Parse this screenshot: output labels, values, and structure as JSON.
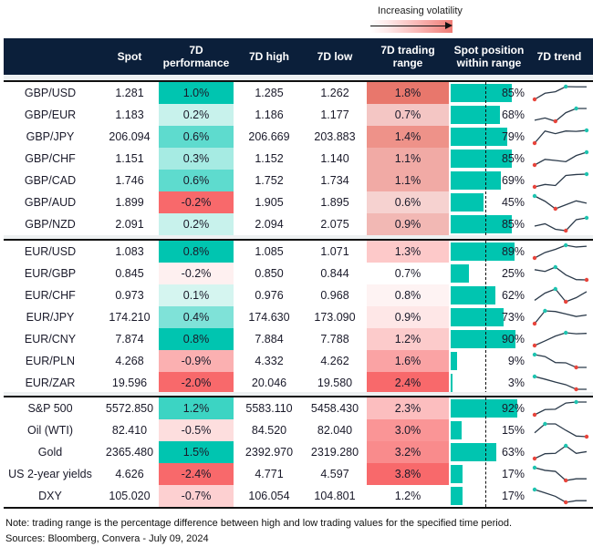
{
  "legend": {
    "title": "Increasing volatility",
    "gradient_colors": [
      "#ffffff",
      "#ef7b74"
    ]
  },
  "headers": {
    "spot": "Spot",
    "perf_1": "7D",
    "perf_2": "performance",
    "high": "7D high",
    "low": "7D low",
    "range_1": "7D trading",
    "range_2": "range",
    "pos_1": "Spot position",
    "pos_2": "within range",
    "trend": "7D trend"
  },
  "colors": {
    "header_bg": "#0b1f3a",
    "bar": "#00c5b0",
    "trend_line": "#2b3a4a",
    "trend_max": "#1fc4b0",
    "trend_min": "#e8453c"
  },
  "groups": [
    {
      "rows": [
        {
          "name": "GBP/USD",
          "spot": "1.281",
          "perf": "1.0%",
          "perf_color": "#00c5b0",
          "high": "1.285",
          "low": "1.262",
          "range": "1.8%",
          "range_color": "#e8776c",
          "position": 85,
          "position_label": "85%",
          "trend": [
            0,
            0.48,
            0.6,
            1,
            0.98,
            0.98
          ]
        },
        {
          "name": "GBP/EUR",
          "spot": "1.183",
          "perf": "0.2%",
          "perf_color": "#c8f2ec",
          "high": "1.186",
          "low": "1.177",
          "range": "0.7%",
          "range_color": "#f4c6c4",
          "position": 68,
          "position_label": "68%",
          "trend": [
            0.08,
            0.26,
            0,
            0.67,
            1,
            1
          ]
        },
        {
          "name": "GBP/JPY",
          "spot": "206.094",
          "perf": "0.6%",
          "perf_color": "#5edbce",
          "high": "206.669",
          "low": "203.883",
          "range": "1.4%",
          "range_color": "#ee9289",
          "position": 79,
          "position_label": "79%",
          "trend": [
            0,
            0.95,
            0.74,
            0.95,
            0.92,
            1
          ]
        },
        {
          "name": "GBP/CHF",
          "spot": "1.151",
          "perf": "0.3%",
          "perf_color": "#a6ebe3",
          "high": "1.152",
          "low": "1.140",
          "range": "1.1%",
          "range_color": "#f1aaa5",
          "position": 85,
          "position_label": "85%",
          "trend": [
            0,
            0.44,
            0.36,
            0.26,
            0.74,
            1
          ]
        },
        {
          "name": "GBP/CAD",
          "spot": "1.746",
          "perf": "0.6%",
          "perf_color": "#5edbce",
          "high": "1.752",
          "low": "1.734",
          "range": "1.1%",
          "range_color": "#f1aaa5",
          "position": 69,
          "position_label": "69%",
          "trend": [
            0,
            0.19,
            0.11,
            0.89,
            0.97,
            1
          ]
        },
        {
          "name": "GBP/AUD",
          "spot": "1.899",
          "perf": "-0.2%",
          "perf_color": "#f8696b",
          "high": "1.905",
          "low": "1.895",
          "range": "0.6%",
          "range_color": "#f6d2d0",
          "position": 45,
          "position_label": "45%",
          "trend": [
            1,
            0.59,
            0,
            0.31,
            0.62,
            0.44
          ]
        },
        {
          "name": "GBP/NZD",
          "spot": "2.091",
          "perf": "0.2%",
          "perf_color": "#c8f2ec",
          "high": "2.094",
          "low": "2.075",
          "range": "0.9%",
          "range_color": "#f2b8b4",
          "position": 85,
          "position_label": "85%",
          "trend": [
            0.36,
            0.54,
            0.11,
            0,
            0.86,
            1
          ]
        }
      ]
    },
    {
      "rows": [
        {
          "name": "EUR/USD",
          "spot": "1.083",
          "perf": "0.8%",
          "perf_color": "#00c5b0",
          "high": "1.085",
          "low": "1.071",
          "range": "1.3%",
          "range_color": "#fdc9c9",
          "position": 89,
          "position_label": "89%",
          "trend": [
            0,
            0.43,
            0.68,
            1,
            0.86,
            0.92
          ]
        },
        {
          "name": "EUR/GBP",
          "spot": "0.845",
          "perf": "-0.2%",
          "perf_color": "#fef0f0",
          "high": "0.850",
          "low": "0.844",
          "range": "0.7%",
          "range_color": "#ffffff",
          "position": 25,
          "position_label": "25%",
          "trend": [
            0.8,
            0.66,
            1,
            0.39,
            0.02,
            0
          ]
        },
        {
          "name": "EUR/CHF",
          "spot": "0.973",
          "perf": "0.1%",
          "perf_color": "#d5f5f0",
          "high": "0.976",
          "low": "0.968",
          "range": "0.8%",
          "range_color": "#fef3f3",
          "position": 62,
          "position_label": "62%",
          "trend": [
            0.11,
            0.68,
            1,
            0,
            0.32,
            0.79
          ]
        },
        {
          "name": "EUR/JPY",
          "spot": "174.210",
          "perf": "0.4%",
          "perf_color": "#7fe2d8",
          "high": "174.630",
          "low": "173.090",
          "range": "0.9%",
          "range_color": "#fee7e7",
          "position": 73,
          "position_label": "73%",
          "trend": [
            0,
            1,
            0.95,
            0.76,
            0.56,
            0.68
          ]
        },
        {
          "name": "EUR/CNY",
          "spot": "7.874",
          "perf": "0.8%",
          "perf_color": "#00c5b0",
          "high": "7.884",
          "low": "7.788",
          "range": "1.2%",
          "range_color": "#fccbcb",
          "position": 90,
          "position_label": "90%",
          "trend": [
            0,
            0.36,
            0.74,
            1,
            0.92,
            0.95
          ]
        },
        {
          "name": "EUR/PLN",
          "spot": "4.268",
          "perf": "-0.9%",
          "perf_color": "#fbb0b1",
          "high": "4.332",
          "low": "4.262",
          "range": "1.6%",
          "range_color": "#faa3a4",
          "position": 9,
          "position_label": "9%",
          "trend": [
            1,
            0.85,
            0.38,
            0.36,
            0,
            0
          ]
        },
        {
          "name": "EUR/ZAR",
          "spot": "19.596",
          "perf": "-2.0%",
          "perf_color": "#f8696b",
          "high": "20.046",
          "low": "19.580",
          "range": "2.4%",
          "range_color": "#f8696b",
          "position": 3,
          "position_label": "3%",
          "trend": [
            1,
            0.79,
            0.56,
            0.36,
            0,
            0
          ]
        }
      ]
    },
    {
      "rows": [
        {
          "name": "S&P 500",
          "spot": "5572.850",
          "perf": "1.2%",
          "perf_color": "#3cd4c3",
          "high": "5583.110",
          "low": "5458.430",
          "range": "2.3%",
          "range_color": "#fcbebf",
          "position": 92,
          "position_label": "92%",
          "trend": [
            0,
            0.41,
            0.44,
            0.92,
            1,
            1
          ]
        },
        {
          "name": "Oil (WTI)",
          "spot": "82.410",
          "perf": "-0.5%",
          "perf_color": "#fddede",
          "high": "84.520",
          "low": "82.040",
          "range": "3.0%",
          "range_color": "#fa9596",
          "position": 15,
          "position_label": "15%",
          "trend": [
            0.3,
            1,
            1,
            0.5,
            0.05,
            0
          ]
        },
        {
          "name": "Gold",
          "spot": "2365.480",
          "perf": "1.5%",
          "perf_color": "#00c5b0",
          "high": "2392.970",
          "low": "2319.280",
          "range": "3.2%",
          "range_color": "#f98b8c",
          "position": 63,
          "position_label": "63%",
          "trend": [
            0,
            0.38,
            0.41,
            1,
            0.41,
            0.54
          ]
        },
        {
          "name": "US 2-year yields",
          "spot": "4.626",
          "perf": "-2.4%",
          "perf_color": "#f8696b",
          "high": "4.771",
          "low": "4.597",
          "range": "3.8%",
          "range_color": "#f8696b",
          "position": 17,
          "position_label": "17%",
          "trend": [
            1,
            0.79,
            0.71,
            0,
            0.13,
            0.13
          ]
        },
        {
          "name": "DXY",
          "spot": "105.020",
          "perf": "-0.7%",
          "perf_color": "#fdd0d1",
          "high": "106.054",
          "low": "104.801",
          "range": "1.2%",
          "range_color": "#ffffff",
          "position": 17,
          "position_label": "17%",
          "trend": [
            1,
            0.74,
            0.47,
            0,
            0.13,
            0.13
          ]
        }
      ]
    }
  ],
  "footnotes": {
    "note": "Note: trading range is the percentage difference between high and low trading values for the specified time period.",
    "sources": "Sources: Bloomberg, Convera - July 09, 2024"
  }
}
